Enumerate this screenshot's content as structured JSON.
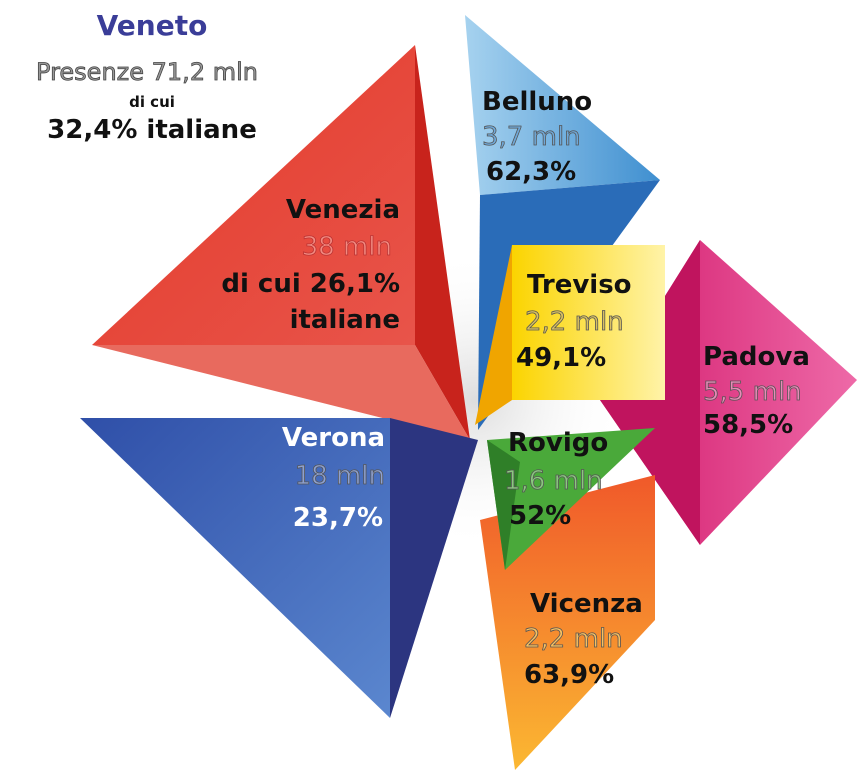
{
  "header": {
    "title": "Veneto",
    "total": "Presenze  71,2 mln",
    "note": "di cui",
    "share": "32,4% italiane"
  },
  "regions": [
    {
      "name": "Venezia",
      "lines": [
        "38 mln",
        "di cui 26,1%",
        "italiane"
      ]
    },
    {
      "name": "Belluno",
      "lines": [
        "3,7 mln",
        "62,3%"
      ]
    },
    {
      "name": "Treviso",
      "lines": [
        "2,2 mln",
        "49,1%"
      ]
    },
    {
      "name": "Padova",
      "lines": [
        "5,5 mln",
        "58,5%"
      ]
    },
    {
      "name": "Verona",
      "lines": [
        "18 mln",
        "23,7%"
      ]
    },
    {
      "name": "Rovigo",
      "lines": [
        "1,6 mln",
        "52%"
      ]
    },
    {
      "name": "Vicenza",
      "lines": [
        "2,2 mln",
        "63,9%"
      ]
    }
  ]
}
